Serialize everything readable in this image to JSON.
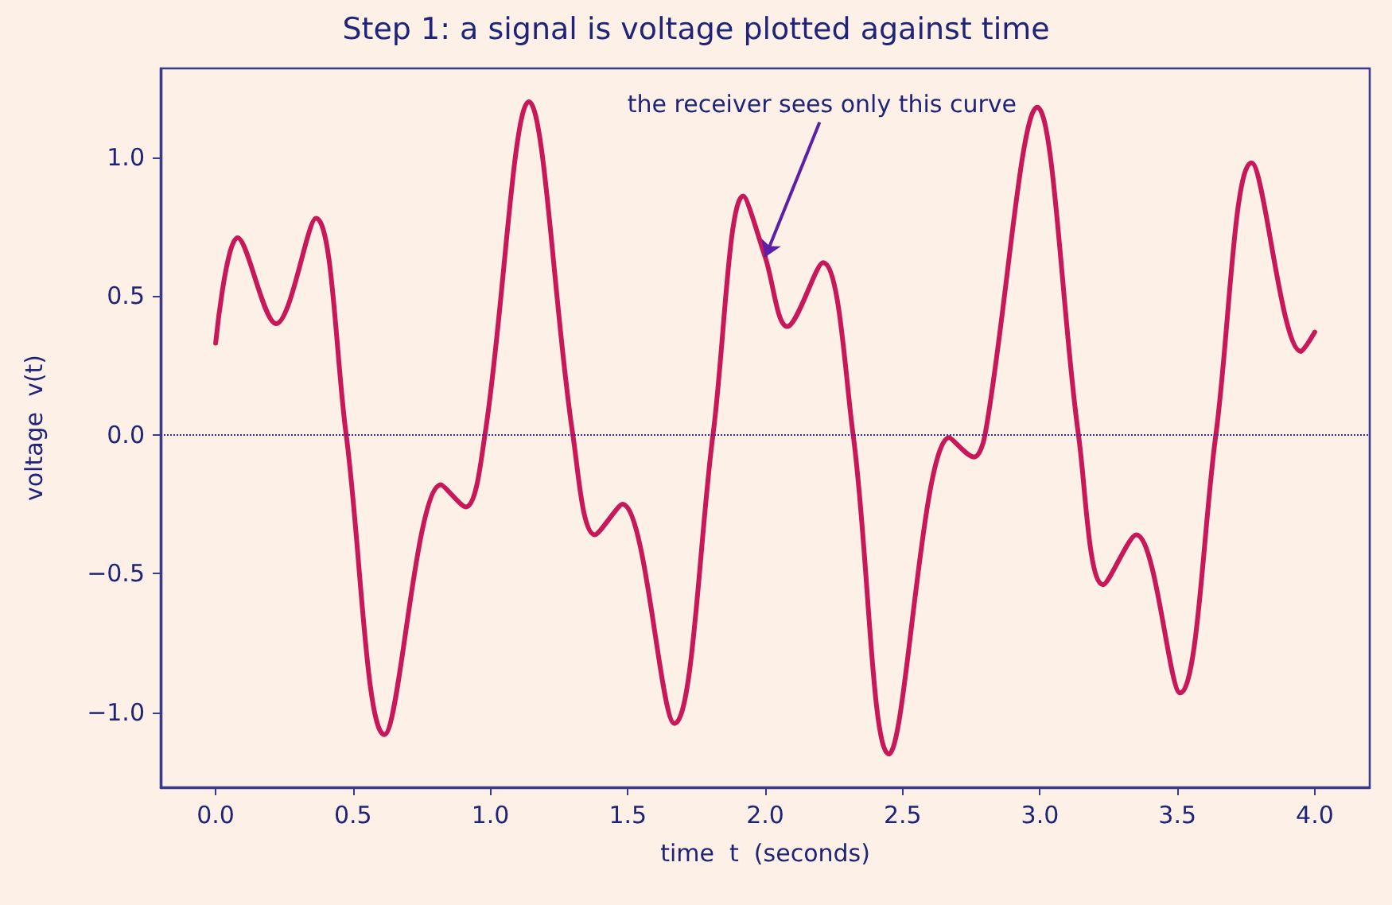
{
  "chart_data": {
    "type": "line",
    "title": "Step 1: a signal is voltage plotted against time",
    "xlabel": "time  t  (seconds)",
    "ylabel": "voltage  v(t)",
    "x": [
      0,
      0.08,
      0.22,
      0.365,
      0.475,
      0.614,
      0.82,
      0.91,
      0.98,
      1.14,
      1.3,
      1.38,
      1.48,
      1.67,
      1.81,
      1.92,
      2.0,
      2.08,
      2.21,
      2.32,
      2.45,
      2.67,
      2.76,
      2.8,
      2.99,
      3.14,
      3.23,
      3.35,
      3.51,
      3.64,
      3.77,
      3.95,
      4.0
    ],
    "series": [
      {
        "color": "#c8185a",
        "values": [
          0.33,
          0.71,
          0.4,
          0.78,
          0,
          -1.08,
          -0.18,
          -0.26,
          0,
          1.2,
          0,
          -0.36,
          -0.25,
          -1.04,
          0,
          0.86,
          0.64,
          0.39,
          0.62,
          0,
          -1.15,
          -0.01,
          -0.08,
          0,
          1.18,
          0,
          -0.54,
          -0.36,
          -0.93,
          0,
          0.98,
          0.3,
          0.37
        ]
      }
    ],
    "xlim": [
      -0.2,
      4.2
    ],
    "ylim": [
      -1.27,
      1.32
    ],
    "xticks": [
      {
        "value": 0,
        "label": "0.0"
      },
      0.5,
      {
        "value": 1,
        "label": "1.0"
      },
      1.5,
      {
        "value": 2,
        "label": "2.0"
      },
      2.5,
      {
        "value": 3,
        "label": "3.0"
      },
      3.5,
      {
        "value": 4,
        "label": "4.0"
      }
    ],
    "yticks": [
      {
        "value": -1,
        "label": "−1.0"
      },
      {
        "value": -0.5,
        "label": "−0.5"
      },
      {
        "value": 0,
        "label": "0.0"
      },
      0.5,
      {
        "value": 1,
        "label": "1.0"
      }
    ],
    "ref_lines": [
      {
        "axis": "y",
        "value": 0,
        "color": "#3b2a8f",
        "line_style": "dotted"
      }
    ],
    "annotations": [
      {
        "text": "the receiver sees only this curve",
        "x": 2.0,
        "y": 0.64
      }
    ],
    "marker": "none",
    "line_style": "solid"
  }
}
